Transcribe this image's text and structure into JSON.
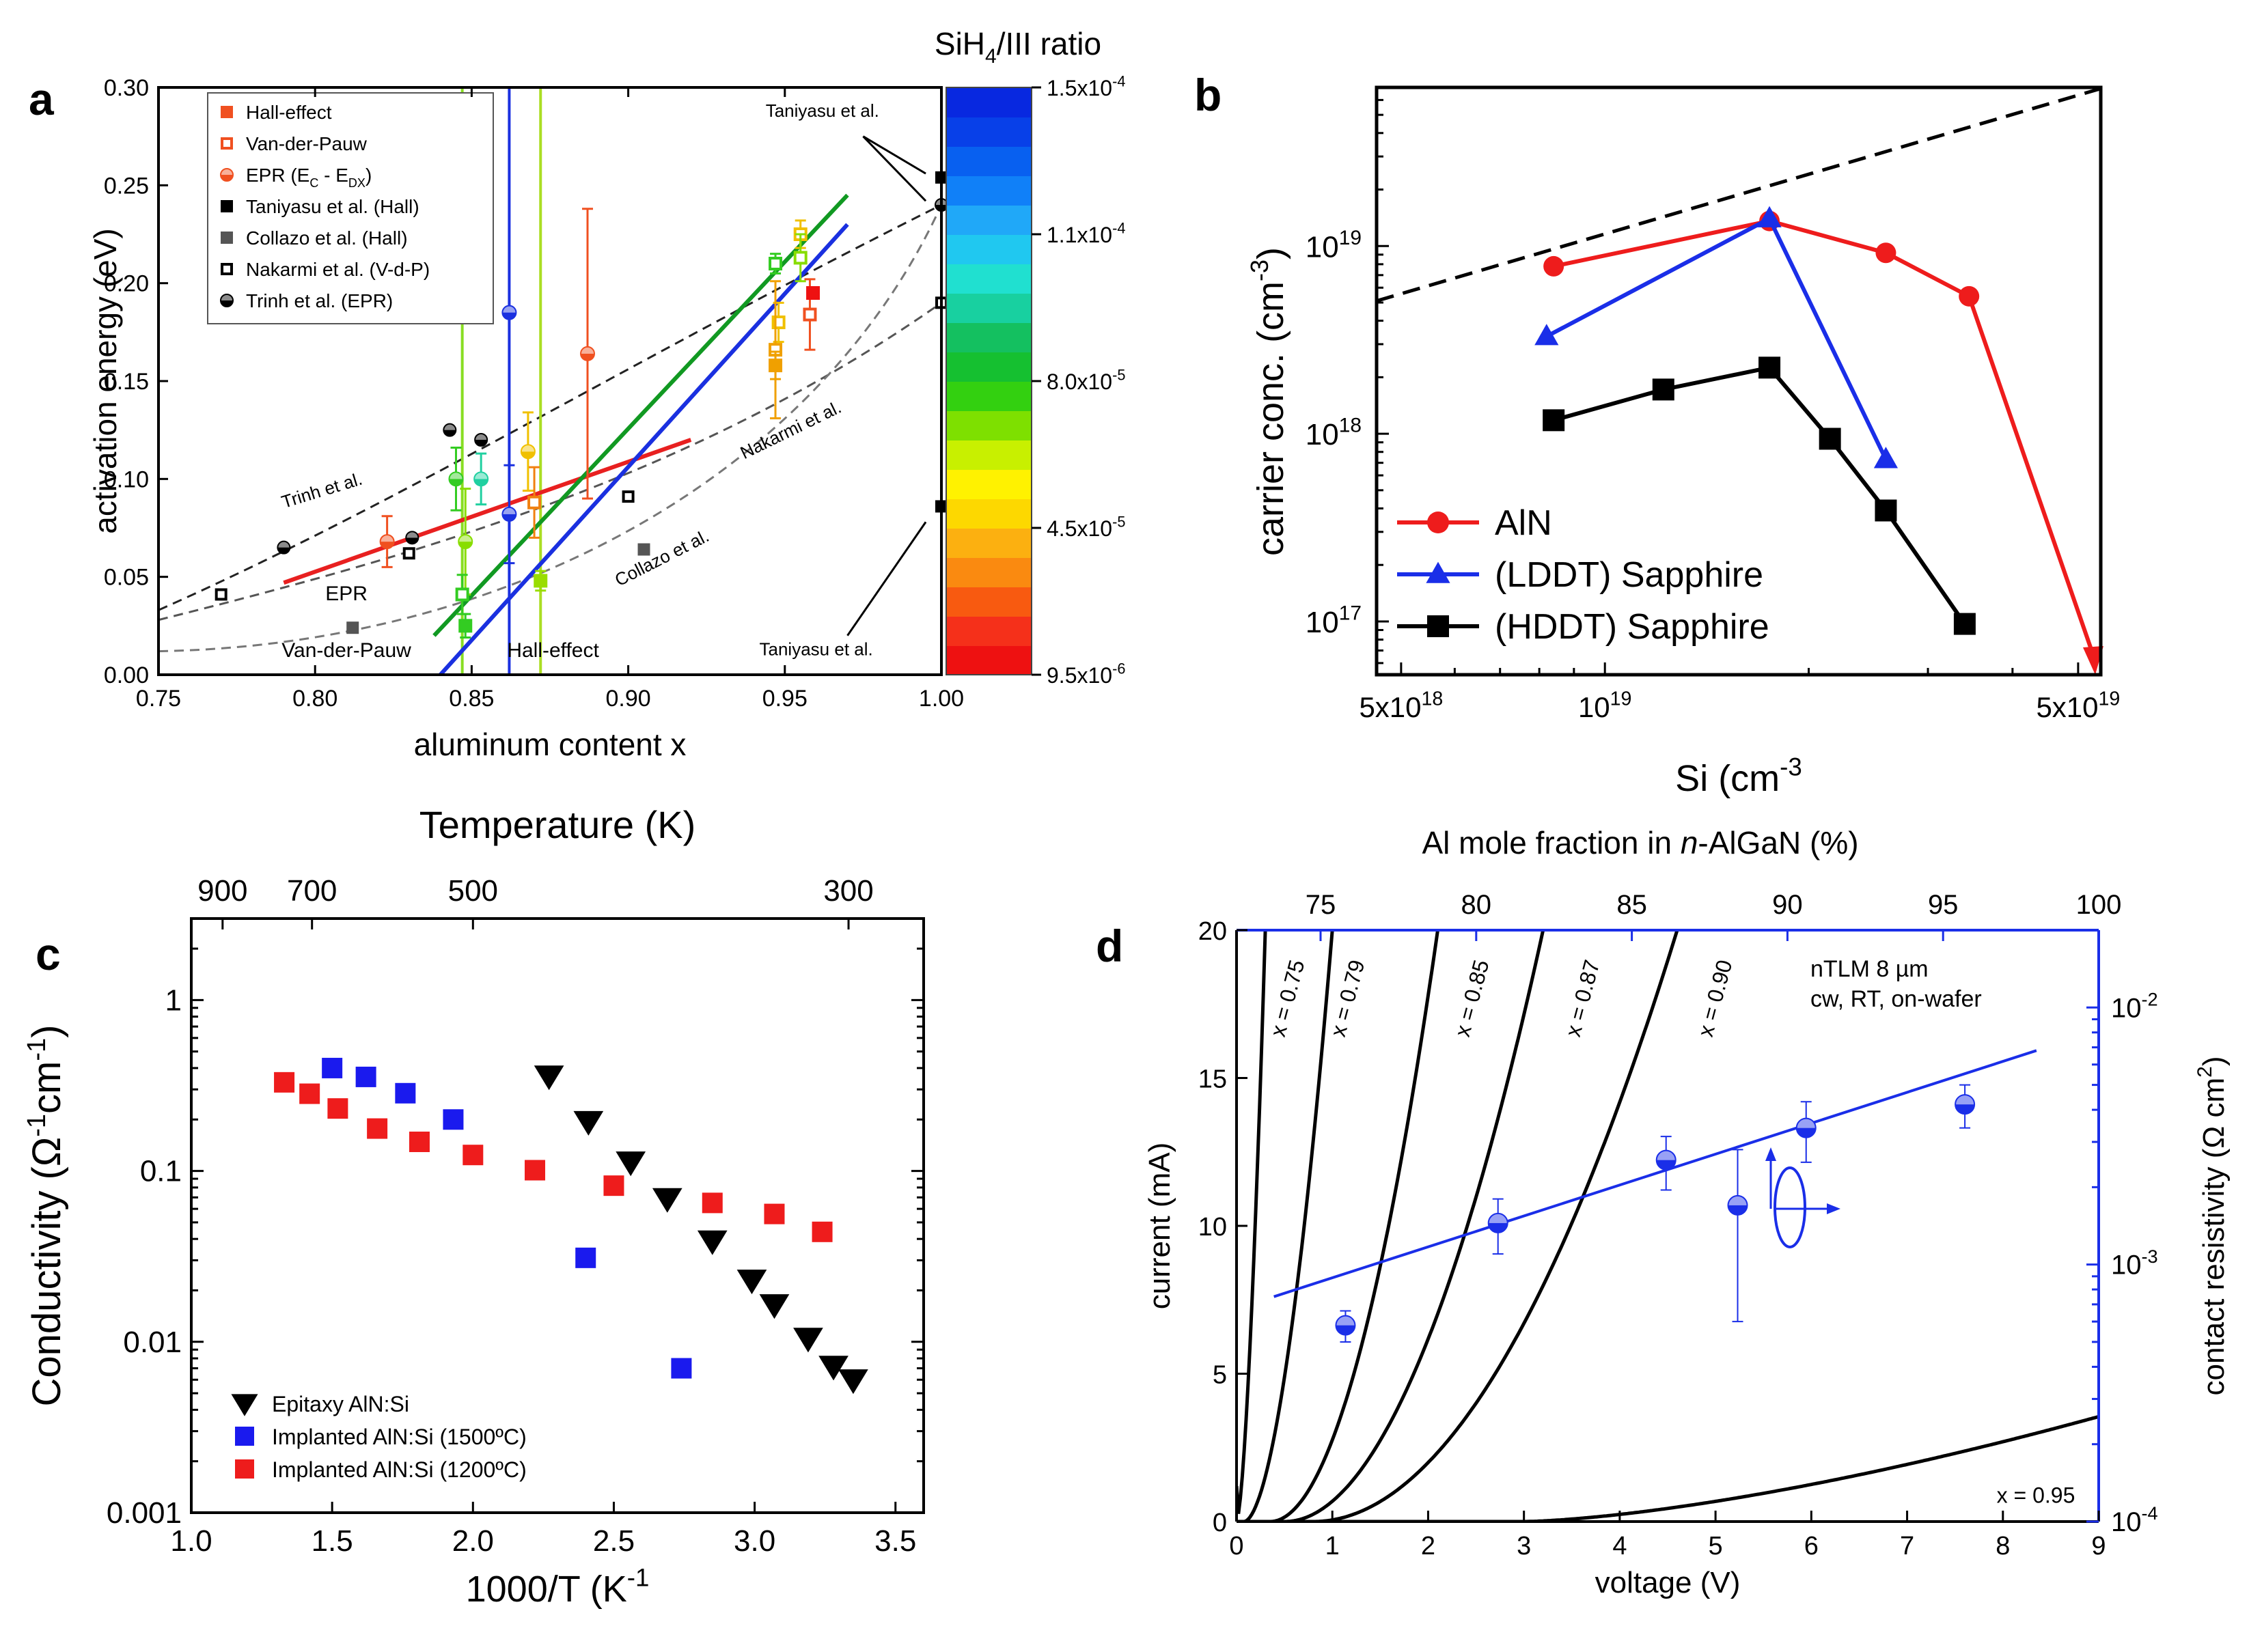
{
  "chart_data": [
    {
      "panel": "a",
      "type": "scatter",
      "xlabel": "aluminum content x",
      "ylabel": "activation energy (eV)",
      "xlim": [
        0.75,
        1.0
      ],
      "ylim": [
        0.0,
        0.3
      ],
      "xticks": [
        "0.75",
        "0.80",
        "0.85",
        "0.90",
        "0.95",
        "1.00"
      ],
      "yticks": [
        "0.00",
        "0.05",
        "0.10",
        "0.15",
        "0.20",
        "0.25",
        "0.30"
      ],
      "colorbar": {
        "title_main": "SiH",
        "title_sub": "4",
        "title_rest": "/III ratio",
        "labels": [
          {
            "mant": "1.5x10",
            "exp": "-4",
            "frac": 1.0
          },
          {
            "mant": "1.1x10",
            "exp": "-4",
            "frac": 0.75
          },
          {
            "mant": "8.0x10",
            "exp": "-5",
            "frac": 0.5
          },
          {
            "mant": "4.5x10",
            "exp": "-5",
            "frac": 0.25
          },
          {
            "mant": "9.5x10",
            "exp": "-6",
            "frac": 0.0
          }
        ],
        "colors": [
          "#ee1111",
          "#f5301a",
          "#f85a10",
          "#fa8a10",
          "#fcb010",
          "#fdd800",
          "#fff200",
          "#c8f000",
          "#7ee000",
          "#33d010",
          "#15c030",
          "#14c060",
          "#18d0a0",
          "#20e0d0",
          "#20c8f0",
          "#20a8f8",
          "#1080f8",
          "#0860f0",
          "#0840e8",
          "#0828e0"
        ]
      },
      "legend": [
        {
          "label": "Hall-effect",
          "marker": "square-filled",
          "color": "#f05020"
        },
        {
          "label": "Van-der-Pauw",
          "marker": "square-open",
          "color": "#f05020"
        },
        {
          "label": "EPR (E",
          "sub1": "C",
          "mid": " - E",
          "sub2": "DX",
          "end": ")",
          "marker": "circle-half",
          "color": "#f05020"
        },
        {
          "label": "Taniyasu et al. (Hall)",
          "marker": "square-filled",
          "color": "#000000"
        },
        {
          "label": "Collazo et al. (Hall)",
          "marker": "square-filled",
          "color": "#555555"
        },
        {
          "label": "Nakarmi et al. (V-d-P)",
          "marker": "square-open",
          "color": "#000000"
        },
        {
          "label": "Trinh et al. (EPR)",
          "marker": "circle-half",
          "color": "#000000"
        }
      ],
      "ref_points": [
        {
          "x": 0.77,
          "y": 0.041,
          "marker": "square-open",
          "color": "#000"
        },
        {
          "x": 0.83,
          "y": 0.062,
          "marker": "square-open",
          "color": "#000"
        },
        {
          "x": 0.9,
          "y": 0.091,
          "marker": "square-open",
          "color": "#000"
        },
        {
          "x": 1.0,
          "y": 0.19,
          "marker": "square-open",
          "color": "#000"
        },
        {
          "x": 0.79,
          "y": 0.065,
          "marker": "circle-half",
          "color": "#000"
        },
        {
          "x": 0.831,
          "y": 0.07,
          "marker": "circle-half",
          "color": "#000"
        },
        {
          "x": 0.843,
          "y": 0.125,
          "marker": "circle-half",
          "color": "#000"
        },
        {
          "x": 0.853,
          "y": 0.12,
          "marker": "circle-half",
          "color": "#000"
        },
        {
          "x": 1.0,
          "y": 0.24,
          "marker": "circle-half",
          "color": "#000"
        },
        {
          "x": 0.812,
          "y": 0.024,
          "marker": "square-filled",
          "color": "#555"
        },
        {
          "x": 0.905,
          "y": 0.064,
          "marker": "square-filled",
          "color": "#555"
        },
        {
          "x": 1.0,
          "y": 0.254,
          "marker": "square-filled",
          "color": "#000"
        },
        {
          "x": 1.0,
          "y": 0.086,
          "marker": "square-filled",
          "color": "#000"
        }
      ],
      "meas_points": [
        {
          "x": 0.823,
          "y": 0.068,
          "err": 0.013,
          "marker": "circle-half",
          "color": "#f05020"
        },
        {
          "x": 0.887,
          "y": 0.164,
          "err": 0.074,
          "marker": "circle-half",
          "color": "#f05020"
        },
        {
          "x": 0.845,
          "y": 0.1,
          "err": 0.016,
          "marker": "circle-half",
          "color": "#33cc22"
        },
        {
          "x": 0.853,
          "y": 0.1,
          "err": 0.013,
          "marker": "circle-half",
          "color": "#20d0a0"
        },
        {
          "x": 0.848,
          "y": 0.068,
          "err": 0.027,
          "marker": "circle-half",
          "color": "#88dd00"
        },
        {
          "x": 0.847,
          "y": 0.041,
          "err": 0.01,
          "marker": "square-open",
          "color": "#33cc22"
        },
        {
          "x": 0.848,
          "y": 0.025,
          "err": 0.006,
          "marker": "square-filled",
          "color": "#33cc22"
        },
        {
          "x": 0.862,
          "y": 0.082,
          "err": 0.025,
          "marker": "circle-half",
          "color": "#1a30e0"
        },
        {
          "x": 0.862,
          "y": 0.185,
          "err": 0.0,
          "marker": "circle-half",
          "color": "#1a30e0"
        },
        {
          "x": 0.868,
          "y": 0.114,
          "err": 0.02,
          "marker": "circle-half",
          "color": "#f0c000"
        },
        {
          "x": 0.87,
          "y": 0.088,
          "err": 0.018,
          "marker": "square-open",
          "color": "#f08010"
        },
        {
          "x": 0.872,
          "y": 0.048,
          "err": 0.005,
          "marker": "square-filled",
          "color": "#99dd00"
        },
        {
          "x": 0.947,
          "y": 0.21,
          "err": 0.005,
          "marker": "square-open",
          "color": "#33cc22"
        },
        {
          "x": 0.948,
          "y": 0.18,
          "err": 0.01,
          "marker": "square-open",
          "color": "#f0c000"
        },
        {
          "x": 0.947,
          "y": 0.166,
          "err": 0.035,
          "marker": "square-open",
          "color": "#f0a000"
        },
        {
          "x": 0.947,
          "y": 0.158,
          "err": 0.007,
          "marker": "square-filled",
          "color": "#f0a000"
        },
        {
          "x": 0.955,
          "y": 0.225,
          "err": 0.007,
          "marker": "square-open",
          "color": "#f0c000"
        },
        {
          "x": 0.955,
          "y": 0.213,
          "err": 0.012,
          "marker": "square-open",
          "color": "#88dd00"
        },
        {
          "x": 0.958,
          "y": 0.184,
          "err": 0.018,
          "marker": "square-open",
          "color": "#f05020"
        },
        {
          "x": 0.959,
          "y": 0.195,
          "err": 0.0,
          "marker": "square-filled",
          "color": "#ee1111"
        }
      ],
      "fit_lines": [
        {
          "label": "EPR",
          "color": "#e82020",
          "x": [
            0.79,
            0.92
          ],
          "y": [
            0.047,
            0.12
          ]
        },
        {
          "label": "Van-der-Pauw",
          "color": "#119922",
          "x": [
            0.838,
            0.97
          ],
          "y": [
            0.02,
            0.245
          ]
        },
        {
          "label": "Hall-effect",
          "color": "#1a30e0",
          "x": [
            0.84,
            0.97
          ],
          "y": [
            0.0,
            0.23
          ]
        }
      ],
      "vlines": [
        {
          "x": 0.847,
          "color": "#88dd22"
        },
        {
          "x": 0.862,
          "color": "#1a30e0"
        },
        {
          "x": 0.872,
          "color": "#aadd22"
        }
      ],
      "annotations": [
        "Trinh et al.",
        "Nakarmi et al.",
        "Collazo et al.",
        "Taniyasu et al.",
        "Taniyasu et al.",
        "EPR",
        "Van-der-Pauw",
        "Hall-effect"
      ]
    },
    {
      "panel": "b",
      "type": "line",
      "xlabel_main": "Si (cm",
      "xlabel_exp": "-3",
      "ylabel_main": "carrier conc. (cm",
      "ylabel_exp": "-3",
      "xscale": "log",
      "yscale": "log",
      "xlim": [
        4.6e+18,
        5.4e+19
      ],
      "ylim": [
        5.2e+16,
        7e+19
      ],
      "xticks": [
        {
          "v": 5e+18,
          "mant": "5x10",
          "exp": "18"
        },
        {
          "v": 1e+19,
          "mant": "10",
          "exp": "19"
        },
        {
          "v": 5e+19,
          "mant": "5x10",
          "exp": "19"
        }
      ],
      "yticks": [
        {
          "v": 1e+17,
          "mant": "10",
          "exp": "17"
        },
        {
          "v": 1e+18,
          "mant": "10",
          "exp": "18"
        },
        {
          "v": 1e+19,
          "mant": "10",
          "exp": "19"
        }
      ],
      "series": [
        {
          "name": "AlN",
          "color": "#ee1c1c",
          "marker": "circle",
          "x": [
            8.4e+18,
            1.75e+19,
            2.6e+19,
            3.45e+19
          ],
          "y": [
            7.8e+18,
            1.36e+19,
            9.2e+18,
            5.4e+18
          ],
          "arrow_to": {
            "x": 5.3e+19,
            "y": 5.2e+16
          }
        },
        {
          "name": "(LDDT) Sapphire",
          "color": "#1a2ee8",
          "marker": "triangle",
          "x": [
            8.2e+18,
            1.75e+19,
            2.6e+19
          ],
          "y": [
            3.3e+18,
            1.4e+19,
            7.3e+17
          ]
        },
        {
          "name": "(HDDT) Sapphire",
          "color": "#000000",
          "marker": "square",
          "x": [
            8.4e+18,
            1.22e+19,
            1.75e+19,
            2.15e+19,
            2.6e+19,
            3.4e+19
          ],
          "y": [
            1.18e+18,
            1.72e+18,
            2.25e+18,
            9.4e+17,
            3.9e+17,
            9.7e+16
          ]
        }
      ],
      "dashed_line": {
        "x": [
          4.6e+18,
          5.4e+19
        ],
        "y": [
          5.1e+18,
          6.9e+19
        ]
      }
    },
    {
      "panel": "c",
      "type": "scatter",
      "xlabel_main": "1000/T (K",
      "xlabel_exp": "-1",
      "ylabel_main": "Conductivity (Ω",
      "ylabel_exp1": "-1",
      "ylabel_mid": "cm",
      "ylabel_exp2": "-1",
      "top_axis_label": "Temperature (K)",
      "top_ticks": [
        "900",
        "700",
        "500",
        "300"
      ],
      "top_tick_temps": [
        900,
        700,
        500,
        300
      ],
      "xlim": [
        1.0,
        3.6
      ],
      "ylim": [
        0.001,
        3.0
      ],
      "xticks": [
        "1.0",
        "1.5",
        "2.0",
        "2.5",
        "3.0",
        "3.5"
      ],
      "yticks": [
        {
          "v": 0.001,
          "label": "0.001"
        },
        {
          "v": 0.01,
          "label": "0.01"
        },
        {
          "v": 0.1,
          "label": "0.1"
        },
        {
          "v": 1,
          "label": "1"
        }
      ],
      "series": [
        {
          "name": "Epitaxy AlN:Si",
          "color": "#000000",
          "marker": "triangle-down",
          "x": [
            2.27,
            2.41,
            2.56,
            2.69,
            2.85,
            2.99,
            3.07,
            3.19,
            3.28,
            3.35
          ],
          "y": [
            0.36,
            0.195,
            0.113,
            0.069,
            0.039,
            0.023,
            0.0165,
            0.0105,
            0.0072,
            0.006
          ]
        },
        {
          "name": "Implanted AlN:Si (1500ºC)",
          "color": "#1a1aee",
          "marker": "square",
          "x": [
            1.5,
            1.62,
            1.76,
            1.93,
            2.4,
            2.74
          ],
          "y": [
            0.4,
            0.355,
            0.285,
            0.2,
            0.031,
            0.007
          ]
        },
        {
          "name": "Implanted AlN:Si (1200ºC)",
          "color": "#ee1c1c",
          "marker": "square",
          "x": [
            1.33,
            1.42,
            1.52,
            1.66,
            1.81,
            2.0,
            2.22,
            2.5,
            2.85,
            3.07,
            3.24
          ],
          "y": [
            0.33,
            0.283,
            0.232,
            0.177,
            0.148,
            0.124,
            0.101,
            0.082,
            0.065,
            0.056,
            0.044
          ]
        }
      ]
    },
    {
      "panel": "d",
      "type": "line",
      "xlabel": "voltage (V)",
      "ylabel": "current (mA)",
      "y2label_main": "contact resistivity (Ω cm",
      "y2label_exp": "2",
      "y2label_end": ")",
      "top_axis_label_main": "Al mole fraction in ",
      "top_axis_label_it": "n",
      "top_axis_label_end": "-AlGaN (%)",
      "xlim": [
        0,
        9
      ],
      "ylim": [
        0,
        20
      ],
      "xticks": [
        "0",
        "1",
        "2",
        "3",
        "4",
        "5",
        "6",
        "7",
        "8",
        "9"
      ],
      "yticks": [
        "0",
        "5",
        "10",
        "15",
        "20"
      ],
      "top_ticks": [
        "75",
        "80",
        "85",
        "90",
        "95",
        "100"
      ],
      "top_xlim": [
        72.3,
        100
      ],
      "y2lim": [
        0.0001,
        0.02
      ],
      "y2ticks": [
        {
          "v": 0.0001,
          "mant": "10",
          "exp": "-4"
        },
        {
          "v": 0.001,
          "mant": "10",
          "exp": "-3"
        },
        {
          "v": 0.01,
          "mant": "10",
          "exp": "-2"
        }
      ],
      "iv_curves": [
        {
          "label": "x = 0.75",
          "v0": 0.0,
          "v20": 0.3,
          "p": 1.6,
          "y0": 1.2
        },
        {
          "label": "x = 0.79",
          "v0": 0.08,
          "v20": 1.0,
          "p": 1.8,
          "y0": 0
        },
        {
          "label": "x = 0.85",
          "v0": 0.35,
          "v20": 2.1,
          "p": 2.0,
          "y0": 0
        },
        {
          "label": "x = 0.87",
          "v0": 0.5,
          "v20": 3.2,
          "p": 2.0,
          "y0": 0
        },
        {
          "label": "x = 0.90",
          "v0": 0.8,
          "v20": 4.6,
          "p": 2.0,
          "y0": 0
        },
        {
          "label": "x = 0.95",
          "v0": 3.0,
          "v20": 22.0,
          "p": 1.5,
          "y0": 0
        }
      ],
      "resistivity_points": {
        "color": "#1a2ee8",
        "x_pct": [
          75.8,
          80.7,
          86.1,
          88.4,
          90.6,
          95.7
        ],
        "y": [
          0.00058,
          0.00145,
          0.00255,
          0.0017,
          0.0034,
          0.0042
        ],
        "err": [
          8e-05,
          0.00035,
          0.0006,
          0.0011,
          0.0009,
          0.0008
        ]
      },
      "resistivity_fit": {
        "x_pct": [
          73.5,
          98
        ],
        "y": [
          0.00075,
          0.0068
        ]
      },
      "annotation_lines": [
        "nTLM 8 µm",
        "cw, RT, on-wafer"
      ]
    }
  ],
  "panel_labels": [
    "a",
    "b",
    "c",
    "d"
  ]
}
